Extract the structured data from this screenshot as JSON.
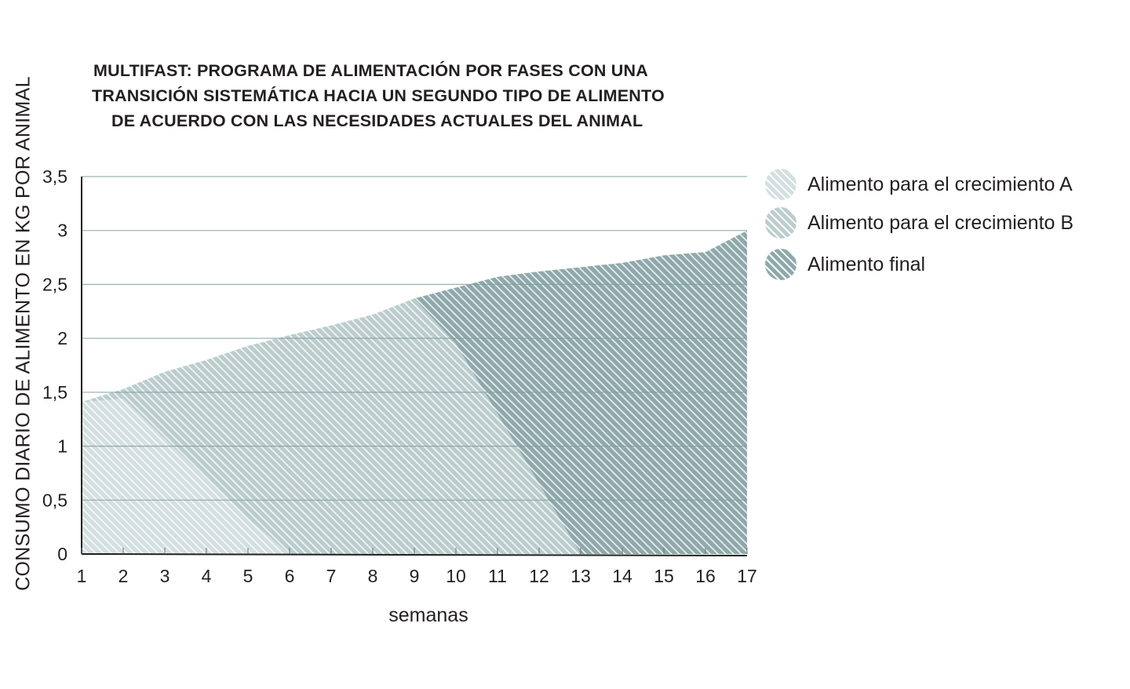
{
  "chart_data": {
    "type": "area",
    "stacked": true,
    "title": [
      "MULTIFAST: PROGRAMA DE ALIMENTACIÓN POR FASES CON UNA",
      "TRANSICIÓN SISTEMÁTICA HACIA UN SEGUNDO TIPO DE ALIMENTO",
      "DE ACUERDO CON LAS NECESIDADES ACTUALES DEL ANIMAL"
    ],
    "xlabel": "semanas",
    "ylabel": "CONSUMO DIARIO DE ALIMENTO EN KG POR ANIMAL",
    "x": [
      1,
      2,
      3,
      4,
      5,
      6,
      7,
      8,
      9,
      10,
      11,
      12,
      13,
      14,
      15,
      16,
      17
    ],
    "xticks": [
      "1",
      "2",
      "3",
      "4",
      "5",
      "6",
      "7",
      "8",
      "9",
      "10",
      "11",
      "12",
      "13",
      "14",
      "15",
      "16",
      "17"
    ],
    "yticks": [
      "0",
      "0,5",
      "1",
      "1,5",
      "2",
      "2,5",
      "3",
      "3,5"
    ],
    "ytick_values": [
      0,
      0.5,
      1,
      1.5,
      2,
      2.5,
      3,
      3.5
    ],
    "ylim": [
      0,
      3.5
    ],
    "xlim": [
      1,
      17
    ],
    "grid": true,
    "legend_position": "right",
    "total": [
      1.41,
      1.53,
      1.69,
      1.8,
      1.93,
      2.03,
      2.12,
      2.22,
      2.37,
      2.47,
      2.57,
      2.62,
      2.66,
      2.7,
      2.77,
      2.8,
      3.0
    ],
    "series": [
      {
        "name": "Alimento para el crecimiento A",
        "color": "#d4e0e0",
        "values": [
          1.41,
          1.44,
          1.07,
          0.7,
          0.33,
          0,
          0,
          0,
          0,
          0,
          0,
          0,
          0,
          0,
          0,
          0,
          0
        ]
      },
      {
        "name": "Alimento para el crecimiento B",
        "color": "#bccdce",
        "values": [
          0,
          0.09,
          0.62,
          1.1,
          1.6,
          2.03,
          2.12,
          2.22,
          2.37,
          1.95,
          1.3,
          0.65,
          0,
          0,
          0,
          0,
          0
        ]
      },
      {
        "name": "Alimento final",
        "color": "#8fa9ab",
        "values": [
          0,
          0,
          0,
          0,
          0,
          0,
          0,
          0,
          0,
          0.52,
          1.27,
          1.97,
          2.66,
          2.7,
          2.77,
          2.8,
          3.0
        ]
      }
    ]
  }
}
